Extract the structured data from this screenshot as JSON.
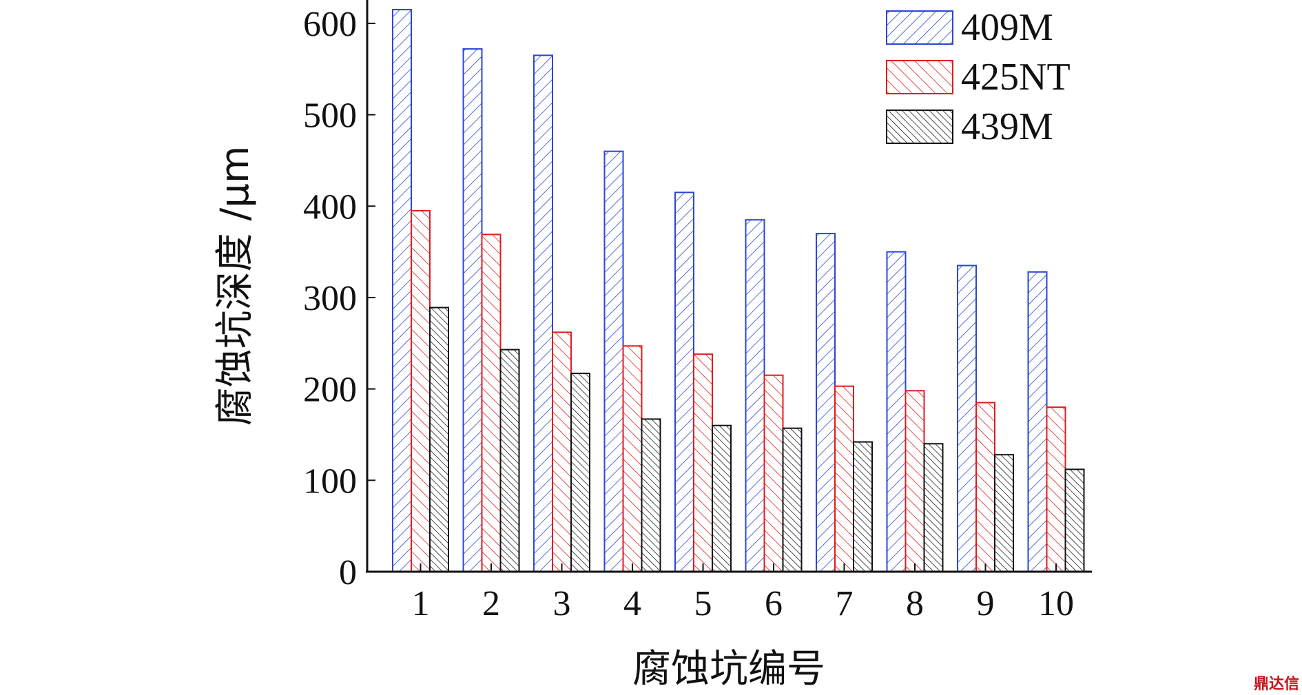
{
  "chart_data": {
    "type": "bar",
    "categories": [
      "1",
      "2",
      "3",
      "4",
      "5",
      "6",
      "7",
      "8",
      "9",
      "10"
    ],
    "series": [
      {
        "name": "409M",
        "values": [
          615,
          572,
          565,
          460,
          415,
          385,
          370,
          350,
          335,
          328
        ],
        "color": "#2a46d6",
        "hatch": "forward"
      },
      {
        "name": "425NT",
        "values": [
          395,
          369,
          262,
          247,
          238,
          215,
          203,
          198,
          185,
          180
        ],
        "color": "#e31a1c",
        "hatch": "backward"
      },
      {
        "name": "439M",
        "values": [
          289,
          243,
          217,
          167,
          160,
          157,
          142,
          140,
          128,
          112
        ],
        "color": "#111111",
        "hatch": "backward-dense"
      }
    ],
    "xlabel": "腐蚀坑编号",
    "ylabel": "腐蚀坑深度 /μm",
    "yticks": [
      0,
      100,
      200,
      300,
      400,
      500,
      600
    ],
    "ylim": [
      0,
      625
    ],
    "legend_position": "top-right",
    "grid": false
  },
  "watermark": {
    "text": "鼎达信",
    "color": "#c4161c"
  }
}
